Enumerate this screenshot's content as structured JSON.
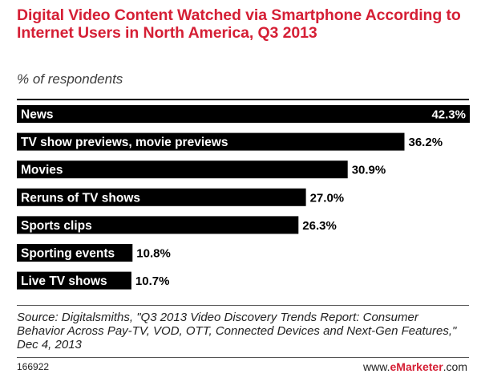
{
  "chart_data": {
    "type": "bar",
    "orientation": "horizontal",
    "title": "Digital Video Content Watched via Smartphone According to Internet Users in North America, Q3 2013",
    "subtitle": "% of respondents",
    "categories": [
      "News",
      "TV show previews, movie previews",
      "Movies",
      "Reruns of TV shows",
      "Sports clips",
      "Sporting events",
      "Live TV shows"
    ],
    "values": [
      42.3,
      36.2,
      30.9,
      27.0,
      26.3,
      10.8,
      10.7
    ],
    "value_labels": [
      "42.3%",
      "36.2%",
      "30.9%",
      "27.0%",
      "26.3%",
      "10.8%",
      "10.7%"
    ],
    "xlim": [
      0,
      42.3
    ],
    "grid": false,
    "bar_color": "#000000",
    "label_color": "#ffffff"
  },
  "source": "Source: Digitalsmiths, \"Q3 2013 Video Discovery Trends Report: Consumer Behavior Across Pay-TV, VOD, OTT, Connected Devices and Next-Gen Features,\" Dec 4, 2013",
  "footer": {
    "chart_id": "166922",
    "brand_prefix": "www.",
    "brand_accent": "eMarketer",
    "brand_suffix": ".com"
  },
  "colors": {
    "accent": "#d51f35",
    "bar": "#000000"
  }
}
